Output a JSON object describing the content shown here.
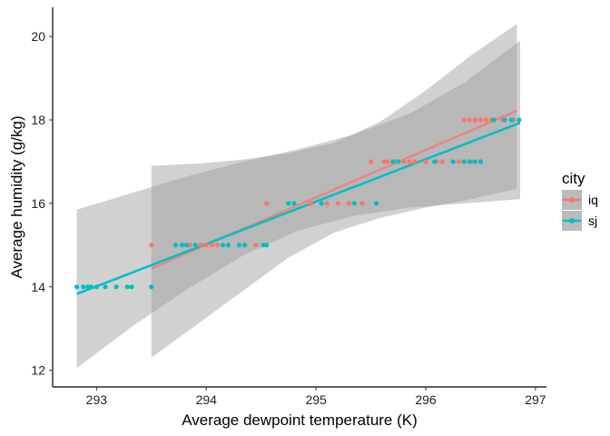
{
  "chart_data": {
    "type": "scatter",
    "title": "",
    "xlabel": "Average dewpoint temperature (K)",
    "ylabel": "Average humidity (g/kg)",
    "xlim": [
      292.6,
      297.1
    ],
    "ylim": [
      11.6,
      20.7
    ],
    "x_ticks": [
      293,
      294,
      295,
      296,
      297
    ],
    "y_ticks": [
      12,
      14,
      16,
      18,
      20
    ],
    "grid": false,
    "legend": {
      "title": "city",
      "position": "right"
    },
    "series": [
      {
        "name": "iq",
        "color": "#F8766D",
        "points": [
          [
            293.5,
            15
          ],
          [
            293.85,
            15
          ],
          [
            293.9,
            15
          ],
          [
            293.95,
            15
          ],
          [
            294.0,
            15
          ],
          [
            294.05,
            15
          ],
          [
            294.1,
            15
          ],
          [
            294.2,
            15
          ],
          [
            294.3,
            15
          ],
          [
            294.35,
            15
          ],
          [
            294.45,
            15
          ],
          [
            294.55,
            16
          ],
          [
            294.95,
            16
          ],
          [
            295.1,
            16
          ],
          [
            295.2,
            16
          ],
          [
            295.3,
            16
          ],
          [
            295.42,
            16
          ],
          [
            295.5,
            17
          ],
          [
            295.62,
            17
          ],
          [
            295.65,
            17
          ],
          [
            295.72,
            17
          ],
          [
            295.8,
            17
          ],
          [
            295.85,
            17
          ],
          [
            295.9,
            17
          ],
          [
            296.0,
            17
          ],
          [
            296.1,
            17
          ],
          [
            296.15,
            17
          ],
          [
            296.3,
            17
          ],
          [
            296.35,
            17
          ],
          [
            296.42,
            17
          ],
          [
            296.35,
            18
          ],
          [
            296.4,
            18
          ],
          [
            296.45,
            18
          ],
          [
            296.5,
            18
          ],
          [
            296.55,
            18
          ],
          [
            296.6,
            18
          ],
          [
            296.7,
            18
          ],
          [
            296.8,
            18
          ]
        ],
        "fit": {
          "x": [
            293.5,
            296.83
          ],
          "y": [
            14.44,
            18.22
          ]
        },
        "ci": {
          "upper": [
            16.9,
            16.95,
            17.05,
            17.2,
            17.45,
            17.95,
            18.7,
            19.55,
            20.3
          ],
          "lower": [
            12.3,
            13.1,
            13.9,
            14.7,
            15.3,
            15.65,
            15.9,
            16.1,
            16.35
          ]
        }
      },
      {
        "name": "sj",
        "color": "#00BFC4",
        "points": [
          [
            292.82,
            14
          ],
          [
            292.88,
            14
          ],
          [
            292.92,
            14
          ],
          [
            292.95,
            14
          ],
          [
            293.0,
            14
          ],
          [
            293.08,
            14
          ],
          [
            293.18,
            14
          ],
          [
            293.28,
            14
          ],
          [
            293.32,
            14
          ],
          [
            293.5,
            14
          ],
          [
            293.72,
            15
          ],
          [
            293.78,
            15
          ],
          [
            293.82,
            15
          ],
          [
            293.9,
            15
          ],
          [
            294.15,
            15
          ],
          [
            294.2,
            15
          ],
          [
            294.3,
            15
          ],
          [
            294.35,
            15
          ],
          [
            294.52,
            15
          ],
          [
            294.55,
            15
          ],
          [
            294.75,
            16
          ],
          [
            294.8,
            16
          ],
          [
            295.05,
            16
          ],
          [
            295.35,
            16
          ],
          [
            295.55,
            16
          ],
          [
            295.7,
            17
          ],
          [
            295.75,
            17
          ],
          [
            296.08,
            17
          ],
          [
            296.25,
            17
          ],
          [
            296.35,
            17
          ],
          [
            296.4,
            17
          ],
          [
            296.45,
            17
          ],
          [
            296.5,
            17
          ],
          [
            296.62,
            18
          ],
          [
            296.72,
            18
          ],
          [
            296.78,
            18
          ],
          [
            296.85,
            18
          ]
        ],
        "fit": {
          "x": [
            292.82,
            296.86
          ],
          "y": [
            13.83,
            17.93
          ]
        },
        "ci": {
          "upper": [
            15.85,
            16.25,
            16.65,
            17.0,
            17.3,
            17.65,
            18.15,
            18.9,
            19.9
          ],
          "lower": [
            12.05,
            13.05,
            13.95,
            14.75,
            15.35,
            15.7,
            15.9,
            16.0,
            16.1
          ]
        }
      }
    ]
  }
}
